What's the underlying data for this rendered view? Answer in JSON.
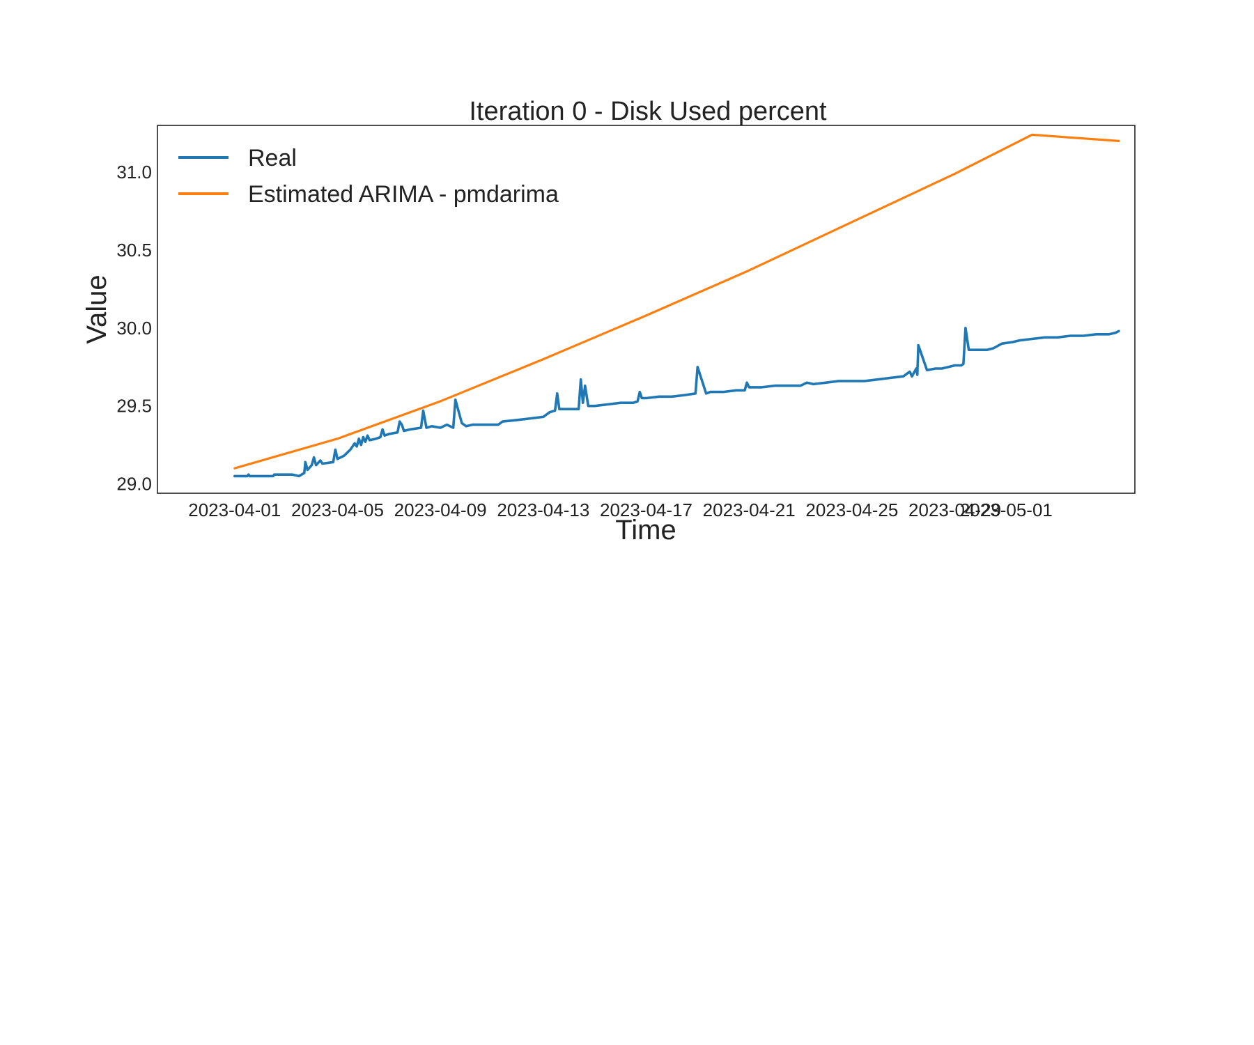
{
  "chart_data": {
    "type": "line",
    "title": "Iteration 0 - Disk Used percent",
    "xlabel": "Time",
    "ylabel": "Value",
    "x_range": [
      "2023-03-29",
      "2023-05-06"
    ],
    "ylim": [
      28.94,
      31.3
    ],
    "grid": false,
    "legend_position": "top-left",
    "x_ticks": [
      "2023-04-01",
      "2023-04-05",
      "2023-04-09",
      "2023-04-13",
      "2023-04-17",
      "2023-04-21",
      "2023-04-25",
      "2023-04-29",
      "2023-05-01"
    ],
    "y_ticks": [
      29.0,
      29.5,
      30.0,
      30.5,
      31.0
    ],
    "y_tick_labels": [
      "29.0",
      "29.5",
      "30.0",
      "30.5",
      "31.0"
    ],
    "series": [
      {
        "name": "Real",
        "color": "#1f77b4",
        "points": [
          [
            "2023-04-01 00:00",
            29.05
          ],
          [
            "2023-04-01 12:00",
            29.05
          ],
          [
            "2023-04-01 13:00",
            29.06
          ],
          [
            "2023-04-01 14:00",
            29.05
          ],
          [
            "2023-04-02 00:00",
            29.05
          ],
          [
            "2023-04-02 12:00",
            29.05
          ],
          [
            "2023-04-02 13:00",
            29.06
          ],
          [
            "2023-04-02 18:00",
            29.06
          ],
          [
            "2023-04-03 06:00",
            29.06
          ],
          [
            "2023-04-03 12:00",
            29.05
          ],
          [
            "2023-04-03 17:00",
            29.07
          ],
          [
            "2023-04-03 18:00",
            29.14
          ],
          [
            "2023-04-03 20:00",
            29.09
          ],
          [
            "2023-04-04 00:00",
            29.12
          ],
          [
            "2023-04-04 02:00",
            29.17
          ],
          [
            "2023-04-04 04:00",
            29.12
          ],
          [
            "2023-04-04 08:00",
            29.15
          ],
          [
            "2023-04-04 10:00",
            29.13
          ],
          [
            "2023-04-04 20:00",
            29.14
          ],
          [
            "2023-04-04 22:00",
            29.22
          ],
          [
            "2023-04-05 00:00",
            29.16
          ],
          [
            "2023-04-05 06:00",
            29.18
          ],
          [
            "2023-04-05 12:00",
            29.22
          ],
          [
            "2023-04-05 16:00",
            29.26
          ],
          [
            "2023-04-05 18:00",
            29.24
          ],
          [
            "2023-04-05 20:00",
            29.29
          ],
          [
            "2023-04-05 22:00",
            29.25
          ],
          [
            "2023-04-06 00:00",
            29.3
          ],
          [
            "2023-04-06 02:00",
            29.27
          ],
          [
            "2023-04-06 04:00",
            29.31
          ],
          [
            "2023-04-06 06:00",
            29.28
          ],
          [
            "2023-04-06 12:00",
            29.29
          ],
          [
            "2023-04-06 16:00",
            29.3
          ],
          [
            "2023-04-06 18:00",
            29.35
          ],
          [
            "2023-04-06 20:00",
            29.31
          ],
          [
            "2023-04-07 00:00",
            29.32
          ],
          [
            "2023-04-07 08:00",
            29.33
          ],
          [
            "2023-04-07 10:00",
            29.4
          ],
          [
            "2023-04-07 12:00",
            29.38
          ],
          [
            "2023-04-07 14:00",
            29.34
          ],
          [
            "2023-04-07 20:00",
            29.35
          ],
          [
            "2023-04-08 06:00",
            29.36
          ],
          [
            "2023-04-08 08:00",
            29.47
          ],
          [
            "2023-04-08 11:00",
            29.36
          ],
          [
            "2023-04-08 16:00",
            29.37
          ],
          [
            "2023-04-09 00:00",
            29.36
          ],
          [
            "2023-04-09 06:00",
            29.38
          ],
          [
            "2023-04-09 12:00",
            29.36
          ],
          [
            "2023-04-09 14:00",
            29.54
          ],
          [
            "2023-04-09 20:00",
            29.39
          ],
          [
            "2023-04-10 00:00",
            29.37
          ],
          [
            "2023-04-10 06:00",
            29.38
          ],
          [
            "2023-04-10 12:00",
            29.38
          ],
          [
            "2023-04-11 00:00",
            29.38
          ],
          [
            "2023-04-11 06:00",
            29.38
          ],
          [
            "2023-04-11 10:00",
            29.4
          ],
          [
            "2023-04-12 00:00",
            29.41
          ],
          [
            "2023-04-12 12:00",
            29.42
          ],
          [
            "2023-04-13 00:00",
            29.43
          ],
          [
            "2023-04-13 06:00",
            29.46
          ],
          [
            "2023-04-13 11:00",
            29.47
          ],
          [
            "2023-04-13 13:00",
            29.58
          ],
          [
            "2023-04-13 15:00",
            29.48
          ],
          [
            "2023-04-14 00:00",
            29.48
          ],
          [
            "2023-04-14 09:00",
            29.48
          ],
          [
            "2023-04-14 11:00",
            29.67
          ],
          [
            "2023-04-14 13:00",
            29.52
          ],
          [
            "2023-04-14 15:00",
            29.63
          ],
          [
            "2023-04-14 18:00",
            29.5
          ],
          [
            "2023-04-15 00:00",
            29.5
          ],
          [
            "2023-04-15 12:00",
            29.51
          ],
          [
            "2023-04-16 00:00",
            29.52
          ],
          [
            "2023-04-16 12:00",
            29.52
          ],
          [
            "2023-04-16 16:00",
            29.53
          ],
          [
            "2023-04-16 18:00",
            29.59
          ],
          [
            "2023-04-16 20:00",
            29.55
          ],
          [
            "2023-04-17 00:00",
            29.55
          ],
          [
            "2023-04-17 12:00",
            29.56
          ],
          [
            "2023-04-18 00:00",
            29.56
          ],
          [
            "2023-04-18 12:00",
            29.57
          ],
          [
            "2023-04-18 22:00",
            29.58
          ],
          [
            "2023-04-19 00:00",
            29.75
          ],
          [
            "2023-04-19 08:00",
            29.58
          ],
          [
            "2023-04-19 12:00",
            29.59
          ],
          [
            "2023-04-20 00:00",
            29.59
          ],
          [
            "2023-04-20 12:00",
            29.6
          ],
          [
            "2023-04-20 20:00",
            29.6
          ],
          [
            "2023-04-20 22:00",
            29.65
          ],
          [
            "2023-04-21 00:00",
            29.62
          ],
          [
            "2023-04-21 12:00",
            29.62
          ],
          [
            "2023-04-22 00:00",
            29.63
          ],
          [
            "2023-04-22 12:00",
            29.63
          ],
          [
            "2023-04-23 00:00",
            29.63
          ],
          [
            "2023-04-23 06:00",
            29.65
          ],
          [
            "2023-04-23 12:00",
            29.64
          ],
          [
            "2023-04-24 00:00",
            29.65
          ],
          [
            "2023-04-24 12:00",
            29.66
          ],
          [
            "2023-04-25 00:00",
            29.66
          ],
          [
            "2023-04-25 12:00",
            29.66
          ],
          [
            "2023-04-26 00:00",
            29.67
          ],
          [
            "2023-04-26 12:00",
            29.68
          ],
          [
            "2023-04-27 00:00",
            29.69
          ],
          [
            "2023-04-27 06:00",
            29.72
          ],
          [
            "2023-04-27 08:00",
            29.69
          ],
          [
            "2023-04-27 12:00",
            29.74
          ],
          [
            "2023-04-27 13:00",
            29.7
          ],
          [
            "2023-04-27 14:00",
            29.89
          ],
          [
            "2023-04-27 22:00",
            29.73
          ],
          [
            "2023-04-28 06:00",
            29.74
          ],
          [
            "2023-04-28 12:00",
            29.74
          ],
          [
            "2023-04-29 00:00",
            29.76
          ],
          [
            "2023-04-29 06:00",
            29.76
          ],
          [
            "2023-04-29 08:00",
            29.77
          ],
          [
            "2023-04-29 10:00",
            30.0
          ],
          [
            "2023-04-29 13:00",
            29.86
          ],
          [
            "2023-04-29 18:00",
            29.86
          ],
          [
            "2023-04-30 06:00",
            29.86
          ],
          [
            "2023-04-30 12:00",
            29.87
          ],
          [
            "2023-04-30 20:00",
            29.9
          ],
          [
            "2023-05-01 06:00",
            29.91
          ],
          [
            "2023-05-01 12:00",
            29.92
          ],
          [
            "2023-05-02 00:00",
            29.93
          ],
          [
            "2023-05-02 12:00",
            29.94
          ],
          [
            "2023-05-03 00:00",
            29.94
          ],
          [
            "2023-05-03 12:00",
            29.95
          ],
          [
            "2023-05-04 00:00",
            29.95
          ],
          [
            "2023-05-04 12:00",
            29.96
          ],
          [
            "2023-05-05 00:00",
            29.96
          ],
          [
            "2023-05-05 06:00",
            29.97
          ],
          [
            "2023-05-05 09:00",
            29.98
          ]
        ]
      },
      {
        "name": "Estimated ARIMA - pmdarima",
        "color": "#ff7f0e",
        "points": [
          [
            "2023-04-01 00:00",
            29.1
          ],
          [
            "2023-04-05 00:00",
            29.29
          ],
          [
            "2023-04-09 00:00",
            29.53
          ],
          [
            "2023-04-13 00:00",
            29.8
          ],
          [
            "2023-04-17 00:00",
            30.08
          ],
          [
            "2023-04-21 00:00",
            30.37
          ],
          [
            "2023-04-25 00:00",
            30.68
          ],
          [
            "2023-04-29 00:00",
            30.99
          ],
          [
            "2023-05-02 00:00",
            31.24
          ],
          [
            "2023-05-05 09:00",
            31.2
          ]
        ]
      }
    ]
  }
}
